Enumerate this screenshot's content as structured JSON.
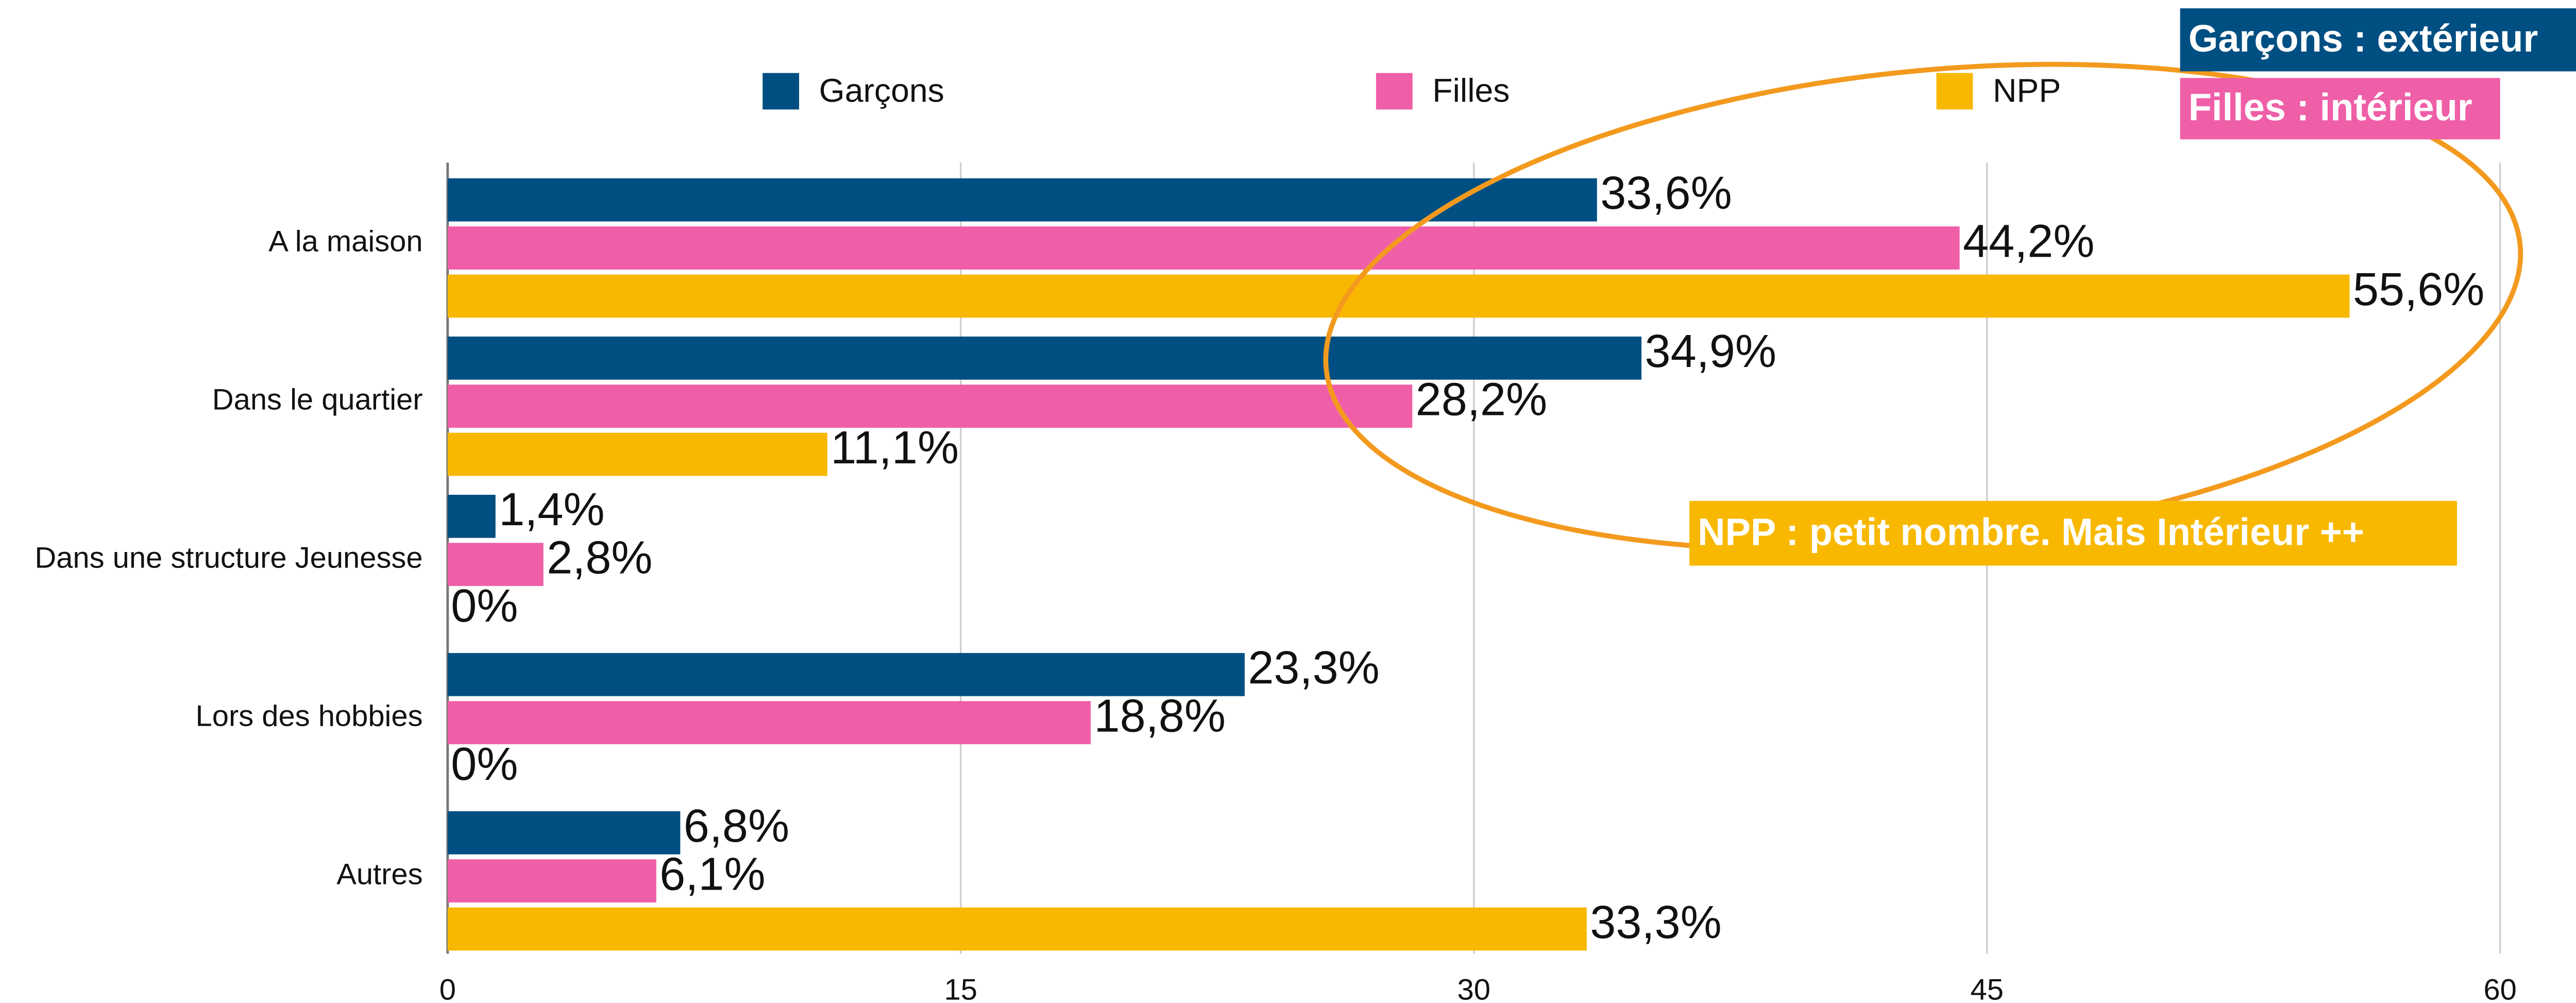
{
  "chart_data": {
    "type": "hbar",
    "categories": [
      "A la maison",
      "Dans le quartier",
      "Dans une structure Jeunesse",
      "Lors des hobbies",
      "Autres"
    ],
    "series": [
      {
        "name": "Garçons",
        "color": "#004f82",
        "values": [
          33.6,
          34.9,
          1.4,
          23.3,
          6.8
        ],
        "value_labels": [
          "33,6%",
          "34,9%",
          "1,4%",
          "23,3%",
          "6,8%"
        ]
      },
      {
        "name": "Filles",
        "color": "#ef5fa7",
        "values": [
          44.2,
          28.2,
          2.8,
          18.8,
          6.1
        ],
        "value_labels": [
          "44,2%",
          "28,2%",
          "2,8%",
          "18,8%",
          "6,1%"
        ]
      },
      {
        "name": "NPP",
        "color": "#f8b800",
        "values": [
          55.6,
          11.1,
          0,
          0,
          33.3
        ],
        "value_labels": [
          "55,6%",
          "11,1%",
          "0%",
          "0%",
          "33,3%"
        ]
      }
    ],
    "xlim": [
      0,
      60
    ],
    "xticks": [
      0,
      15,
      30,
      45,
      60
    ],
    "grid": true,
    "legend": "top",
    "annotations": [
      {
        "text": "Garçons : extérieur",
        "color": "#004f82"
      },
      {
        "text": "Filles : intérieur",
        "color": "#ef5fa7"
      },
      {
        "text": "NPP : petit nombre. Mais Intérieur ++",
        "color": "#f8b800"
      }
    ]
  }
}
